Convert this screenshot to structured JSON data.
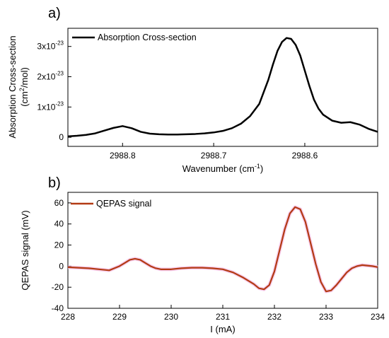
{
  "chart_data": [
    {
      "panel_label": "a)",
      "type": "line",
      "xlabel": "Wavenumber (cm",
      "xlabel_sup": "-1",
      "xlabel_tail": ")",
      "ylabel_line1": "Absorption Cross-section",
      "ylabel_line2_pre": "(cm",
      "ylabel_line2_sup": "2",
      "ylabel_line2_post": "/mol)",
      "xlim": [
        2988.86,
        2988.52
      ],
      "ylim": [
        -0.3,
        3.6
      ],
      "y_unit": "1e-23",
      "x_ticks": [
        {
          "value": 2988.8,
          "label": "2988.8"
        },
        {
          "value": 2988.7,
          "label": "2988.7"
        },
        {
          "value": 2988.6,
          "label": "2988.6"
        }
      ],
      "y_ticks": [
        {
          "value": 0,
          "base": "0",
          "sup": ""
        },
        {
          "value": 1,
          "base": "1x10",
          "sup": "-23"
        },
        {
          "value": 2,
          "base": "2x10",
          "sup": "-23"
        },
        {
          "value": 3,
          "base": "3x10",
          "sup": "-23"
        }
      ],
      "legend": "top-left",
      "series": [
        {
          "name": "Absorption Cross-section",
          "color": "#000000",
          "x": [
            2988.86,
            2988.85,
            2988.84,
            2988.83,
            2988.82,
            2988.81,
            2988.8,
            2988.79,
            2988.78,
            2988.77,
            2988.76,
            2988.75,
            2988.74,
            2988.73,
            2988.72,
            2988.71,
            2988.7,
            2988.69,
            2988.68,
            2988.67,
            2988.66,
            2988.65,
            2988.64,
            2988.635,
            2988.63,
            2988.625,
            2988.62,
            2988.615,
            2988.61,
            2988.605,
            2988.6,
            2988.595,
            2988.59,
            2988.585,
            2988.58,
            2988.57,
            2988.56,
            2988.55,
            2988.54,
            2988.53,
            2988.52
          ],
          "y": [
            0.03,
            0.05,
            0.08,
            0.13,
            0.22,
            0.31,
            0.37,
            0.3,
            0.18,
            0.12,
            0.1,
            0.09,
            0.09,
            0.1,
            0.11,
            0.13,
            0.16,
            0.21,
            0.3,
            0.45,
            0.7,
            1.1,
            1.9,
            2.4,
            2.85,
            3.15,
            3.28,
            3.25,
            3.05,
            2.7,
            2.2,
            1.7,
            1.25,
            0.95,
            0.75,
            0.55,
            0.48,
            0.5,
            0.42,
            0.28,
            0.18
          ]
        }
      ]
    },
    {
      "panel_label": "b)",
      "type": "line",
      "xlabel": "I (mA)",
      "ylabel": "QEPAS signal (mV)",
      "xlim": [
        228,
        234
      ],
      "ylim": [
        -40,
        70
      ],
      "x_ticks": [
        {
          "value": 228,
          "label": "228"
        },
        {
          "value": 229,
          "label": "229"
        },
        {
          "value": 230,
          "label": "230"
        },
        {
          "value": 231,
          "label": "231"
        },
        {
          "value": 232,
          "label": "232"
        },
        {
          "value": 233,
          "label": "233"
        },
        {
          "value": 234,
          "label": "234"
        }
      ],
      "y_ticks": [
        {
          "value": -40,
          "label": "-40"
        },
        {
          "value": -20,
          "label": "-20"
        },
        {
          "value": 0,
          "label": "0"
        },
        {
          "value": 20,
          "label": "20"
        },
        {
          "value": 40,
          "label": "40"
        },
        {
          "value": 60,
          "label": "60"
        }
      ],
      "legend": "top-left",
      "series": [
        {
          "name": "QEPAS signal",
          "color": "#b33a14",
          "x": [
            228.0,
            228.2,
            228.4,
            228.6,
            228.8,
            229.0,
            229.1,
            229.2,
            229.3,
            229.4,
            229.5,
            229.6,
            229.7,
            229.8,
            230.0,
            230.2,
            230.4,
            230.6,
            230.8,
            231.0,
            231.2,
            231.4,
            231.6,
            231.7,
            231.8,
            231.9,
            232.0,
            232.1,
            232.2,
            232.3,
            232.4,
            232.5,
            232.6,
            232.7,
            232.8,
            232.9,
            233.0,
            233.1,
            233.2,
            233.3,
            233.4,
            233.5,
            233.6,
            233.7,
            233.8,
            233.9,
            234.0
          ],
          "y": [
            -1,
            -1.5,
            -2,
            -3,
            -4,
            0,
            3,
            6,
            7,
            6,
            3,
            0,
            -2,
            -3,
            -3,
            -2,
            -1.5,
            -1.5,
            -2,
            -3,
            -6,
            -11,
            -17,
            -21,
            -22,
            -18,
            -5,
            15,
            35,
            50,
            56,
            54,
            42,
            22,
            2,
            -15,
            -24,
            -23,
            -18,
            -12,
            -6,
            -2,
            0,
            1,
            0.5,
            0,
            -1
          ]
        }
      ]
    }
  ]
}
